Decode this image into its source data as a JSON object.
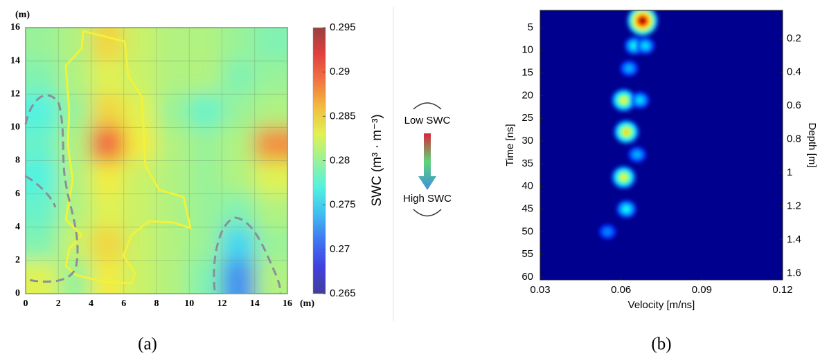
{
  "chart_data": [
    {
      "type": "heatmap",
      "x_label": "(m)",
      "y_label": "(m)",
      "xlim": [
        0,
        16
      ],
      "ylim": [
        0,
        16
      ],
      "xticks": [
        0,
        2,
        4,
        6,
        8,
        10,
        12,
        14,
        16
      ],
      "yticks": [
        0,
        2,
        4,
        6,
        8,
        10,
        12,
        14,
        16
      ],
      "grid": true,
      "values": [
        [
          0.28,
          0.281,
          0.285,
          0.282,
          0.281,
          0.281,
          0.28,
          0.279
        ],
        [
          0.279,
          0.281,
          0.283,
          0.282,
          0.281,
          0.281,
          0.279,
          0.28
        ],
        [
          0.277,
          0.28,
          0.285,
          0.283,
          0.28,
          0.278,
          0.28,
          0.281
        ],
        [
          0.278,
          0.281,
          0.29,
          0.284,
          0.281,
          0.28,
          0.281,
          0.288
        ],
        [
          0.277,
          0.281,
          0.284,
          0.282,
          0.281,
          0.28,
          0.281,
          0.283
        ],
        [
          0.278,
          0.281,
          0.283,
          0.282,
          0.281,
          0.28,
          0.279,
          0.281
        ],
        [
          0.279,
          0.282,
          0.285,
          0.282,
          0.281,
          0.28,
          0.275,
          0.28
        ],
        [
          0.283,
          0.28,
          0.284,
          0.282,
          0.281,
          0.279,
          0.272,
          0.281
        ]
      ],
      "clim": [
        0.265,
        0.295
      ],
      "cticks": [
        0.295,
        0.29,
        0.285,
        0.28,
        0.275,
        0.27,
        0.265
      ],
      "colorbar_label": "SWC (m³ · m⁻³)",
      "caption": "(a)"
    },
    {
      "type": "intensity",
      "x_label": "Velocity [m/ns]",
      "y_label": "Time [ns]",
      "y2_label": "Depth [m]",
      "xlim": [
        0.03,
        0.12
      ],
      "ylim": [
        60.6,
        1.2
      ],
      "y2lim": [
        1.64,
        0.03
      ],
      "xticks": [
        0.03,
        0.06,
        0.09,
        0.12
      ],
      "yticks": [
        5,
        10,
        15,
        20,
        25,
        30,
        35,
        40,
        45,
        50,
        55,
        60
      ],
      "y2ticks": [
        0.2,
        0.4,
        0.6,
        0.8,
        1,
        1.2,
        1.4,
        1.6
      ],
      "x": [
        0.068,
        0.065,
        0.069,
        0.063,
        0.061,
        0.067,
        0.066,
        0.062,
        0.061,
        0.062,
        0.055
      ],
      "y": [
        3.5,
        9,
        9,
        14,
        21,
        21,
        33,
        28,
        38,
        45,
        50
      ],
      "values": [
        1.0,
        0.35,
        0.3,
        0.25,
        0.6,
        0.3,
        0.25,
        0.65,
        0.6,
        0.35,
        0.2
      ],
      "caption": "(b)"
    }
  ],
  "legend_diagram": {
    "top_label": "Low SWC",
    "bottom_label": "High SWC"
  }
}
